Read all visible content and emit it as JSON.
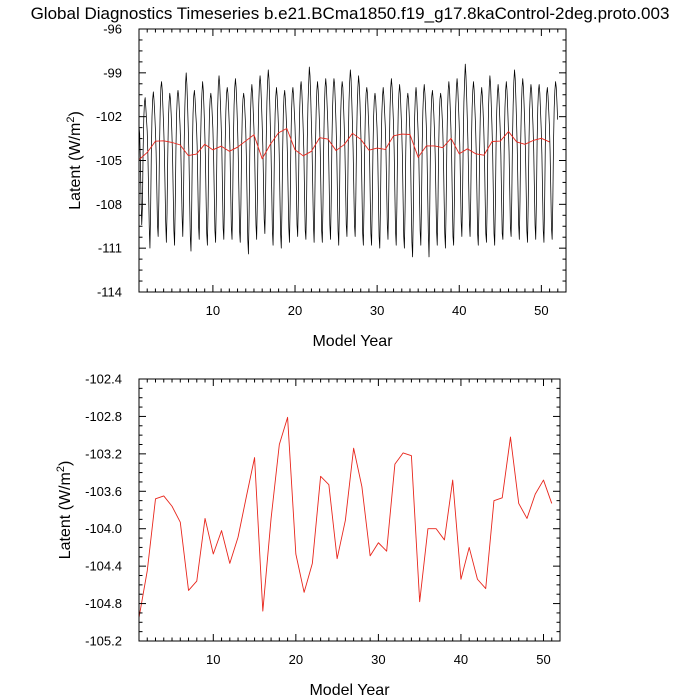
{
  "chart_data": [
    {
      "type": "line",
      "title": "Global Diagnostics Timeseries b.e21.BCma1850.f19_g17.8kaControl-2deg.proto.003",
      "xlabel": "Model Year",
      "ylabel": "Latent (W/m",
      "ylabel_sup": "2",
      "ylabel_close": ")",
      "xlim": [
        1,
        53
      ],
      "ylim": [
        -114,
        -96
      ],
      "x_ticks": [
        10,
        20,
        30,
        40,
        50
      ],
      "y_ticks": [
        -114,
        -111,
        -108,
        -105,
        -102,
        -99,
        -96
      ],
      "grid": false,
      "colors": {
        "monthly": "#000000",
        "annual": "#e8261c"
      },
      "series": [
        {
          "x_start": 1.0,
          "x_step": 0.0833,
          "values": [
            -102.6,
            -103.2,
            -105.0,
            -107.6,
            -109.4,
            -108.2,
            -104.4,
            -102.1,
            -101.0,
            -100.7,
            -101.4,
            -102.2,
            -103.0,
            -104.6,
            -107.0,
            -109.6,
            -111.0,
            -108.4,
            -104.6,
            -102.0,
            -100.8,
            -100.3,
            -100.9,
            -101.8,
            -102.9,
            -104.4,
            -106.8,
            -109.4,
            -110.2,
            -107.8,
            -104.0,
            -101.6,
            -100.0,
            -99.6,
            -100.2,
            -101.4,
            -102.6,
            -104.2,
            -106.6,
            -109.2,
            -110.6,
            -108.6,
            -104.8,
            -102.2,
            -101.0,
            -100.4,
            -100.8,
            -101.8,
            -103.0,
            -104.6,
            -107.2,
            -109.8,
            -110.8,
            -108.0,
            -104.2,
            -101.8,
            -100.6,
            -100.2,
            -100.6,
            -101.6,
            -102.6,
            -104.0,
            -106.4,
            -108.8,
            -110.2,
            -107.8,
            -104.0,
            -101.4,
            -99.8,
            -99.0,
            -99.8,
            -101.2,
            -102.8,
            -104.6,
            -107.6,
            -110.2,
            -111.2,
            -108.4,
            -104.4,
            -101.8,
            -100.6,
            -100.2,
            -100.8,
            -101.8,
            -102.6,
            -104.0,
            -106.6,
            -109.4,
            -110.4,
            -107.8,
            -103.8,
            -101.6,
            -100.4,
            -99.6,
            -100.2,
            -101.4,
            -102.8,
            -104.6,
            -107.4,
            -110.0,
            -110.8,
            -108.2,
            -104.2,
            -101.8,
            -100.8,
            -100.4,
            -100.8,
            -101.8,
            -102.8,
            -104.6,
            -107.2,
            -109.8,
            -110.6,
            -108.0,
            -104.0,
            -101.4,
            -99.8,
            -99.2,
            -99.8,
            -101.0,
            -102.4,
            -104.0,
            -106.8,
            -109.6,
            -110.4,
            -107.8,
            -103.8,
            -101.6,
            -100.4,
            -100.0,
            -100.4,
            -101.4,
            -102.6,
            -104.2,
            -107.0,
            -109.6,
            -110.4,
            -107.6,
            -103.6,
            -101.2,
            -100.0,
            -99.4,
            -100.0,
            -101.2,
            -102.6,
            -104.4,
            -107.0,
            -109.8,
            -110.6,
            -108.0,
            -104.2,
            -101.8,
            -100.8,
            -100.4,
            -100.8,
            -101.8,
            -102.8,
            -104.8,
            -107.6,
            -110.4,
            -111.4,
            -108.6,
            -104.4,
            -101.8,
            -100.4,
            -99.8,
            -100.4,
            -101.6,
            -102.8,
            -104.4,
            -107.0,
            -109.4,
            -110.4,
            -107.8,
            -103.8,
            -101.2,
            -99.8,
            -99.2,
            -99.8,
            -101.0,
            -102.4,
            -104.0,
            -106.4,
            -109.0,
            -110.0,
            -107.6,
            -103.6,
            -101.0,
            -99.6,
            -98.8,
            -99.4,
            -100.8,
            -102.6,
            -104.4,
            -107.0,
            -109.8,
            -110.8,
            -108.2,
            -104.2,
            -101.8,
            -100.6,
            -100.0,
            -100.6,
            -101.6,
            -102.8,
            -104.6,
            -107.4,
            -110.0,
            -111.0,
            -108.4,
            -104.4,
            -101.8,
            -100.6,
            -100.2,
            -100.8,
            -101.8,
            -103.0,
            -104.6,
            -107.2,
            -109.6,
            -110.6,
            -108.0,
            -104.0,
            -101.6,
            -100.4,
            -100.0,
            -100.6,
            -101.6,
            -102.6,
            -104.2,
            -106.8,
            -109.4,
            -110.2,
            -107.6,
            -103.8,
            -101.4,
            -100.0,
            -99.6,
            -100.2,
            -101.4,
            -102.8,
            -104.4,
            -107.2,
            -109.8,
            -110.4,
            -107.8,
            -103.6,
            -101.2,
            -99.8,
            -98.6,
            -99.2,
            -100.6,
            -102.4,
            -104.2,
            -106.8,
            -109.4,
            -110.6,
            -108.0,
            -104.0,
            -101.6,
            -100.2,
            -99.6,
            -100.2,
            -101.4,
            -102.6,
            -104.4,
            -107.2,
            -109.8,
            -110.6,
            -108.0,
            -104.0,
            -101.4,
            -100.0,
            -99.4,
            -100.0,
            -101.2,
            -102.4,
            -104.0,
            -106.6,
            -109.4,
            -110.4,
            -107.8,
            -103.8,
            -101.4,
            -100.0,
            -99.4,
            -99.8,
            -101.0,
            -102.4,
            -104.2,
            -107.0,
            -109.8,
            -110.8,
            -108.2,
            -104.2,
            -101.6,
            -100.2,
            -99.6,
            -100.0,
            -101.2,
            -102.6,
            -104.2,
            -106.8,
            -109.4,
            -110.2,
            -107.6,
            -103.6,
            -101.0,
            -99.6,
            -98.8,
            -99.4,
            -100.8,
            -102.4,
            -104.2,
            -106.8,
            -109.4,
            -110.2,
            -107.6,
            -103.8,
            -101.4,
            -100.0,
            -99.2,
            -99.8,
            -101.0,
            -102.6,
            -104.4,
            -107.2,
            -110.0,
            -110.8,
            -108.0,
            -104.0,
            -101.6,
            -100.4,
            -100.0,
            -100.4,
            -101.6,
            -102.8,
            -104.6,
            -107.4,
            -110.0,
            -110.8,
            -108.2,
            -104.4,
            -102.0,
            -100.8,
            -100.4,
            -100.8,
            -101.8,
            -102.8,
            -104.6,
            -107.4,
            -110.2,
            -111.0,
            -108.2,
            -104.2,
            -101.8,
            -100.6,
            -100.0,
            -100.6,
            -101.6,
            -102.6,
            -104.2,
            -106.8,
            -109.4,
            -110.4,
            -107.8,
            -104.0,
            -101.4,
            -100.0,
            -99.4,
            -100.0,
            -101.2,
            -102.4,
            -104.2,
            -107.0,
            -109.8,
            -110.8,
            -108.2,
            -104.2,
            -101.6,
            -100.4,
            -99.8,
            -100.4,
            -101.6,
            -102.8,
            -104.6,
            -107.4,
            -110.2,
            -111.0,
            -108.4,
            -104.4,
            -102.0,
            -100.8,
            -100.4,
            -100.8,
            -101.8,
            -103.0,
            -104.8,
            -107.8,
            -110.6,
            -111.6,
            -108.8,
            -104.6,
            -102.0,
            -100.6,
            -100.0,
            -100.6,
            -101.8,
            -103.0,
            -104.6,
            -107.2,
            -109.8,
            -110.8,
            -108.0,
            -104.0,
            -101.6,
            -100.4,
            -99.8,
            -100.4,
            -101.4,
            -102.6,
            -104.4,
            -107.2,
            -110.0,
            -111.6,
            -108.6,
            -104.4,
            -101.8,
            -100.6,
            -100.2,
            -100.8,
            -101.8,
            -103.0,
            -104.6,
            -107.2,
            -109.8,
            -110.8,
            -108.2,
            -104.4,
            -102.0,
            -100.8,
            -100.4,
            -100.8,
            -101.8,
            -102.8,
            -104.6,
            -107.4,
            -110.0,
            -111.0,
            -108.2,
            -104.2,
            -101.6,
            -100.2,
            -99.6,
            -100.2,
            -101.4,
            -102.8,
            -104.6,
            -107.4,
            -110.2,
            -110.8,
            -108.0,
            -104.0,
            -101.4,
            -100.0,
            -99.4,
            -100.0,
            -101.2,
            -102.4,
            -104.0,
            -106.6,
            -109.2,
            -110.2,
            -107.6,
            -103.6,
            -101.0,
            -99.6,
            -98.4,
            -99.2,
            -100.6,
            -102.2,
            -104.0,
            -106.6,
            -109.2,
            -110.2,
            -107.6,
            -103.8,
            -101.4,
            -100.2,
            -99.6,
            -100.2,
            -101.4,
            -102.6,
            -104.4,
            -107.2,
            -110.0,
            -110.8,
            -108.2,
            -104.2,
            -101.8,
            -100.6,
            -100.0,
            -100.6,
            -101.6,
            -102.8,
            -104.6,
            -107.4,
            -110.0,
            -110.6,
            -108.0,
            -104.0,
            -101.4,
            -100.0,
            -99.2,
            -99.8,
            -101.2,
            -102.6,
            -104.4,
            -107.2,
            -110.0,
            -110.8,
            -108.0,
            -104.0,
            -101.6,
            -100.4,
            -99.8,
            -100.4,
            -101.6,
            -102.8,
            -104.6,
            -107.4,
            -110.0,
            -110.4,
            -107.8,
            -103.8,
            -101.4,
            -100.2,
            -99.6,
            -100.2,
            -101.4,
            -102.8,
            -104.4,
            -107.0,
            -109.6,
            -110.2,
            -107.6,
            -103.6,
            -101.2,
            -99.6,
            -98.8,
            -99.4,
            -100.8,
            -102.4,
            -104.2,
            -106.8,
            -109.4,
            -110.4,
            -107.8,
            -103.8,
            -101.4,
            -100.0,
            -99.4,
            -100.0,
            -101.2,
            -102.6,
            -104.4,
            -107.0,
            -109.8,
            -110.6,
            -108.0,
            -104.0,
            -101.6,
            -100.4,
            -99.8,
            -100.2,
            -101.4,
            -102.6,
            -104.2,
            -106.8,
            -109.4,
            -110.4,
            -107.8,
            -103.8,
            -101.4,
            -100.2,
            -99.8,
            -100.4,
            -101.6,
            -102.8,
            -104.6,
            -107.2,
            -109.8,
            -110.6,
            -108.0,
            -104.0,
            -101.6,
            -100.4,
            -100.0,
            -100.6,
            -101.6,
            -102.6,
            -104.4,
            -107.0,
            -109.6,
            -110.4,
            -107.8,
            -103.8,
            -101.4,
            -100.2,
            -99.6,
            -100.0,
            -101.0,
            -102.2
          ]
        },
        {
          "x_start": 1.0,
          "x_step": 1.0,
          "values": [
            -104.95,
            -104.45,
            -103.68,
            -103.65,
            -103.76,
            -103.93,
            -104.66,
            -104.56,
            -103.89,
            -104.27,
            -104.02,
            -104.37,
            -104.09,
            -103.66,
            -103.24,
            -104.88,
            -103.89,
            -103.1,
            -102.81,
            -104.27,
            -104.68,
            -104.37,
            -103.44,
            -103.53,
            -104.32,
            -103.91,
            -103.14,
            -103.55,
            -104.29,
            -104.15,
            -104.24,
            -103.31,
            -103.19,
            -103.22,
            -104.78,
            -104.0,
            -104.0,
            -104.12,
            -103.48,
            -104.54,
            -104.2,
            -104.54,
            -104.64,
            -103.7,
            -103.67,
            -103.02,
            -103.73,
            -103.89,
            -103.63,
            -103.48,
            -103.73
          ]
        }
      ]
    },
    {
      "type": "line",
      "xlabel": "Model Year",
      "ylabel": "Latent (W/m",
      "ylabel_sup": "2",
      "ylabel_close": ")",
      "xlim": [
        1,
        52
      ],
      "ylim": [
        -105.2,
        -102.4
      ],
      "x_ticks": [
        10,
        20,
        30,
        40,
        50
      ],
      "y_ticks": [
        -105.2,
        -104.8,
        -104.4,
        -104.0,
        -103.6,
        -103.2,
        -102.8,
        -102.4
      ],
      "y_tick_labels": [
        "-105.2",
        "-104.8",
        "-104.4",
        "-104.0",
        "-103.6",
        "-103.2",
        "-102.8",
        "-102.4"
      ],
      "grid": false,
      "colors": {
        "annual": "#e8261c"
      },
      "series": [
        {
          "x_start": 1.0,
          "x_step": 1.0,
          "values": [
            -104.95,
            -104.45,
            -103.68,
            -103.65,
            -103.76,
            -103.93,
            -104.66,
            -104.56,
            -103.89,
            -104.27,
            -104.02,
            -104.37,
            -104.09,
            -103.66,
            -103.24,
            -104.88,
            -103.89,
            -103.1,
            -102.81,
            -104.27,
            -104.68,
            -104.37,
            -103.44,
            -103.53,
            -104.32,
            -103.91,
            -103.14,
            -103.55,
            -104.29,
            -104.15,
            -104.24,
            -103.31,
            -103.19,
            -103.22,
            -104.78,
            -104.0,
            -104.0,
            -104.12,
            -103.48,
            -104.54,
            -104.2,
            -104.54,
            -104.64,
            -103.7,
            -103.67,
            -103.02,
            -103.73,
            -103.89,
            -103.63,
            -103.48,
            -103.73
          ]
        }
      ]
    }
  ]
}
